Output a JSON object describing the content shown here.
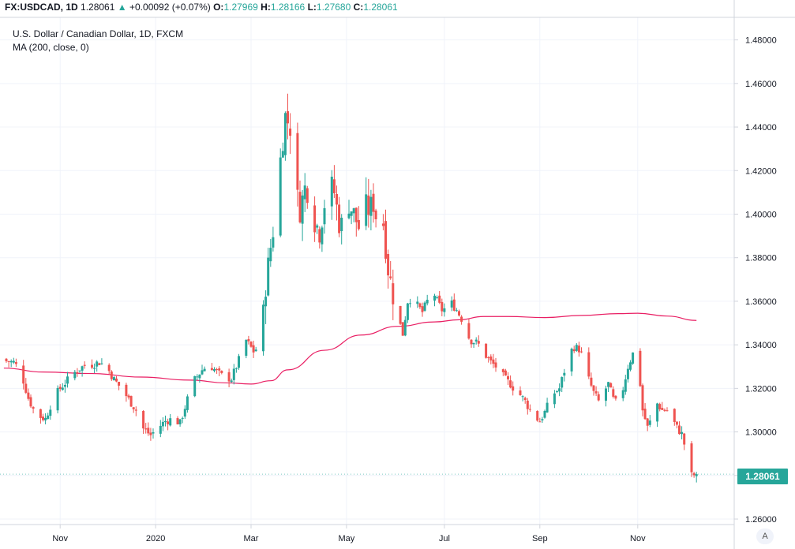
{
  "header": {
    "symbol": "FX:USDCAD,",
    "interval": "1D",
    "last": "1.28061",
    "change_arrow": "▲",
    "change": "+0.00092 (+0.07%)",
    "o_label": "O:",
    "o": "1.27969",
    "h_label": "H:",
    "h": "1.28166",
    "l_label": "L:",
    "l": "1.27680",
    "c_label": "C:",
    "c": "1.28061"
  },
  "legend": {
    "title": "U.S. Dollar / Canadian Dollar, 1D, FXCM",
    "indicator": "MA (200, close, 0)"
  },
  "price_tag": "1.28061",
  "auto_button": "A",
  "colors": {
    "up": "#26a69a",
    "down": "#ef5350",
    "ma": "#e91e63",
    "grid": "#f0f3fa",
    "axis": "#d1d4dc"
  },
  "chart_data": {
    "type": "candlestick",
    "title": "U.S. Dollar / Canadian Dollar, 1D, FXCM",
    "xlabel": "",
    "ylabel": "",
    "ylim": [
      1.255,
      1.49
    ],
    "y_ticks": [
      "1.26000",
      "1.28000",
      "1.30000",
      "1.32000",
      "1.34000",
      "1.36000",
      "1.38000",
      "1.40000",
      "1.42000",
      "1.44000",
      "1.46000",
      "1.48000"
    ],
    "x_ticks": [
      {
        "label": "Nov",
        "day": 22
      },
      {
        "label": "2020",
        "day": 61
      },
      {
        "label": "Mar",
        "day": 100
      },
      {
        "label": "May",
        "day": 139
      },
      {
        "label": "Jul",
        "day": 179
      },
      {
        "label": "Sep",
        "day": 218
      },
      {
        "label": "Nov",
        "day": 258
      }
    ],
    "close_series": [
      [
        0,
        1.3325
      ],
      [
        3,
        1.332
      ],
      [
        6,
        1.3275
      ],
      [
        9,
        1.3155
      ],
      [
        12,
        1.308
      ],
      [
        16,
        1.306
      ],
      [
        19,
        1.315
      ],
      [
        22,
        1.32
      ],
      [
        26,
        1.325
      ],
      [
        29,
        1.3285
      ],
      [
        32,
        1.3305
      ],
      [
        35,
        1.331
      ],
      [
        38,
        1.332
      ],
      [
        41,
        1.33
      ],
      [
        44,
        1.324
      ],
      [
        47,
        1.32
      ],
      [
        50,
        1.315
      ],
      [
        53,
        1.31
      ],
      [
        56,
        1.3015
      ],
      [
        59,
        1.2985
      ],
      [
        62,
        1.302
      ],
      [
        65,
        1.305
      ],
      [
        68,
        1.306
      ],
      [
        71,
        1.304
      ],
      [
        74,
        1.315
      ],
      [
        77,
        1.324
      ],
      [
        80,
        1.3285
      ],
      [
        83,
        1.331
      ],
      [
        86,
        1.3275
      ],
      [
        89,
        1.325
      ],
      [
        92,
        1.3245
      ],
      [
        95,
        1.333
      ],
      [
        98,
        1.342
      ],
      [
        101,
        1.337
      ],
      [
        104,
        1.34
      ],
      [
        106,
        1.3675
      ],
      [
        108,
        1.385
      ],
      [
        110,
        1.4
      ],
      [
        112,
        1.425
      ],
      [
        114,
        1.445
      ],
      [
        116,
        1.44
      ],
      [
        118,
        1.412
      ],
      [
        120,
        1.402
      ],
      [
        122,
        1.412
      ],
      [
        124,
        1.41
      ],
      [
        126,
        1.397
      ],
      [
        128,
        1.392
      ],
      [
        130,
        1.405
      ],
      [
        132,
        1.415
      ],
      [
        134,
        1.41
      ],
      [
        136,
        1.396
      ],
      [
        138,
        1.394
      ],
      [
        140,
        1.405
      ],
      [
        142,
        1.4
      ],
      [
        144,
        1.394
      ],
      [
        146,
        1.405
      ],
      [
        148,
        1.402
      ],
      [
        150,
        1.405
      ],
      [
        152,
        1.394
      ],
      [
        154,
        1.396
      ],
      [
        156,
        1.375
      ],
      [
        158,
        1.363
      ],
      [
        160,
        1.353
      ],
      [
        162,
        1.345
      ],
      [
        164,
        1.36
      ],
      [
        166,
        1.362
      ],
      [
        168,
        1.358
      ],
      [
        170,
        1.355
      ],
      [
        172,
        1.36
      ],
      [
        174,
        1.366
      ],
      [
        176,
        1.36
      ],
      [
        178,
        1.356
      ],
      [
        180,
        1.357
      ],
      [
        182,
        1.359
      ],
      [
        184,
        1.356
      ],
      [
        186,
        1.352
      ],
      [
        188,
        1.345
      ],
      [
        190,
        1.342
      ],
      [
        192,
        1.341
      ],
      [
        194,
        1.339
      ],
      [
        196,
        1.335
      ],
      [
        198,
        1.332
      ],
      [
        200,
        1.33
      ],
      [
        202,
        1.327
      ],
      [
        204,
        1.324
      ],
      [
        206,
        1.322
      ],
      [
        208,
        1.319
      ],
      [
        210,
        1.317
      ],
      [
        212,
        1.314
      ],
      [
        214,
        1.31
      ],
      [
        216,
        1.307
      ],
      [
        218,
        1.305
      ],
      [
        220,
        1.309
      ],
      [
        222,
        1.314
      ],
      [
        224,
        1.318
      ],
      [
        226,
        1.32
      ],
      [
        228,
        1.328
      ],
      [
        230,
        1.336
      ],
      [
        232,
        1.339
      ],
      [
        234,
        1.338
      ],
      [
        236,
        1.333
      ],
      [
        238,
        1.324
      ],
      [
        240,
        1.318
      ],
      [
        242,
        1.314
      ],
      [
        244,
        1.318
      ],
      [
        246,
        1.322
      ],
      [
        248,
        1.315
      ],
      [
        250,
        1.312
      ],
      [
        252,
        1.32
      ],
      [
        254,
        1.33
      ],
      [
        256,
        1.336
      ],
      [
        258,
        1.334
      ],
      [
        260,
        1.31
      ],
      [
        262,
        1.302
      ],
      [
        264,
        1.307
      ],
      [
        266,
        1.313
      ],
      [
        268,
        1.31
      ],
      [
        270,
        1.31
      ],
      [
        272,
        1.306
      ],
      [
        274,
        1.302
      ],
      [
        276,
        1.299
      ],
      [
        278,
        1.29
      ],
      [
        280,
        1.28
      ],
      [
        282,
        1.2806
      ]
    ],
    "ma_series": [
      [
        -1,
        1.3293
      ],
      [
        15,
        1.3275
      ],
      [
        35,
        1.3268
      ],
      [
        55,
        1.3252
      ],
      [
        75,
        1.3238
      ],
      [
        90,
        1.3225
      ],
      [
        100,
        1.322
      ],
      [
        108,
        1.3235
      ],
      [
        115,
        1.3285
      ],
      [
        130,
        1.3375
      ],
      [
        145,
        1.3445
      ],
      [
        160,
        1.3485
      ],
      [
        175,
        1.3505
      ],
      [
        185,
        1.3515
      ],
      [
        195,
        1.353
      ],
      [
        205,
        1.353
      ],
      [
        220,
        1.3525
      ],
      [
        235,
        1.3535
      ],
      [
        250,
        1.3543
      ],
      [
        258,
        1.3545
      ],
      [
        270,
        1.3532
      ],
      [
        282,
        1.3512
      ]
    ]
  }
}
